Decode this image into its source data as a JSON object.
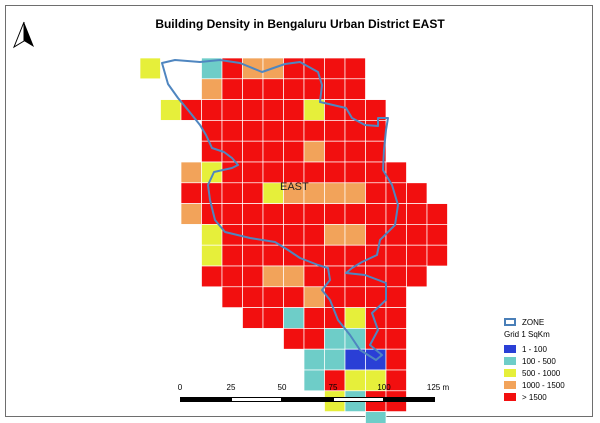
{
  "title": "Building Density in Bengaluru Urban District EAST",
  "zone_label": "EAST",
  "north_arrow": "north-arrow-icon",
  "legend": {
    "zone_label": "ZONE",
    "grid_title": "Grid 1 SqKm",
    "classes": [
      {
        "label": "1 - 100",
        "color": "#2a3fd6"
      },
      {
        "label": "100 - 500",
        "color": "#6ecdc8"
      },
      {
        "label": "500 - 1000",
        "color": "#e6ef3a"
      },
      {
        "label": "1000 - 1500",
        "color": "#f2a35a"
      },
      {
        "label": "> 1500",
        "color": "#f20f0f"
      }
    ]
  },
  "scale_bar": {
    "labels": [
      "0",
      "25",
      "50",
      "75",
      "100",
      "125 m"
    ]
  },
  "grid_overrides": [
    [
      0,
      0,
      "y"
    ],
    [
      0,
      3,
      "c"
    ],
    [
      0,
      5,
      "o"
    ],
    [
      0,
      6,
      "o"
    ],
    [
      1,
      3,
      "o"
    ],
    [
      2,
      1,
      "y"
    ],
    [
      2,
      8,
      "y"
    ],
    [
      4,
      2,
      "y"
    ],
    [
      4,
      8,
      "o"
    ],
    [
      5,
      2,
      "o"
    ],
    [
      5,
      3,
      "y"
    ],
    [
      6,
      6,
      "y"
    ],
    [
      6,
      7,
      "o"
    ],
    [
      6,
      8,
      "o"
    ],
    [
      6,
      9,
      "o"
    ],
    [
      6,
      10,
      "o"
    ],
    [
      7,
      2,
      "o"
    ],
    [
      8,
      3,
      "y"
    ],
    [
      8,
      9,
      "o"
    ],
    [
      8,
      10,
      "o"
    ],
    [
      9,
      3,
      "y"
    ],
    [
      10,
      6,
      "o"
    ],
    [
      10,
      7,
      "o"
    ],
    [
      11,
      8,
      "o"
    ],
    [
      12,
      7,
      "c"
    ],
    [
      12,
      10,
      "y"
    ],
    [
      13,
      9,
      "c"
    ],
    [
      13,
      10,
      "c"
    ],
    [
      14,
      8,
      "c"
    ],
    [
      14,
      9,
      "c"
    ],
    [
      14,
      10,
      "b"
    ],
    [
      14,
      11,
      "b"
    ],
    [
      15,
      8,
      "c"
    ],
    [
      15,
      10,
      "y"
    ],
    [
      15,
      11,
      "y"
    ],
    [
      16,
      9,
      "y"
    ],
    [
      16,
      10,
      "c"
    ],
    [
      17,
      11,
      "c"
    ]
  ]
}
